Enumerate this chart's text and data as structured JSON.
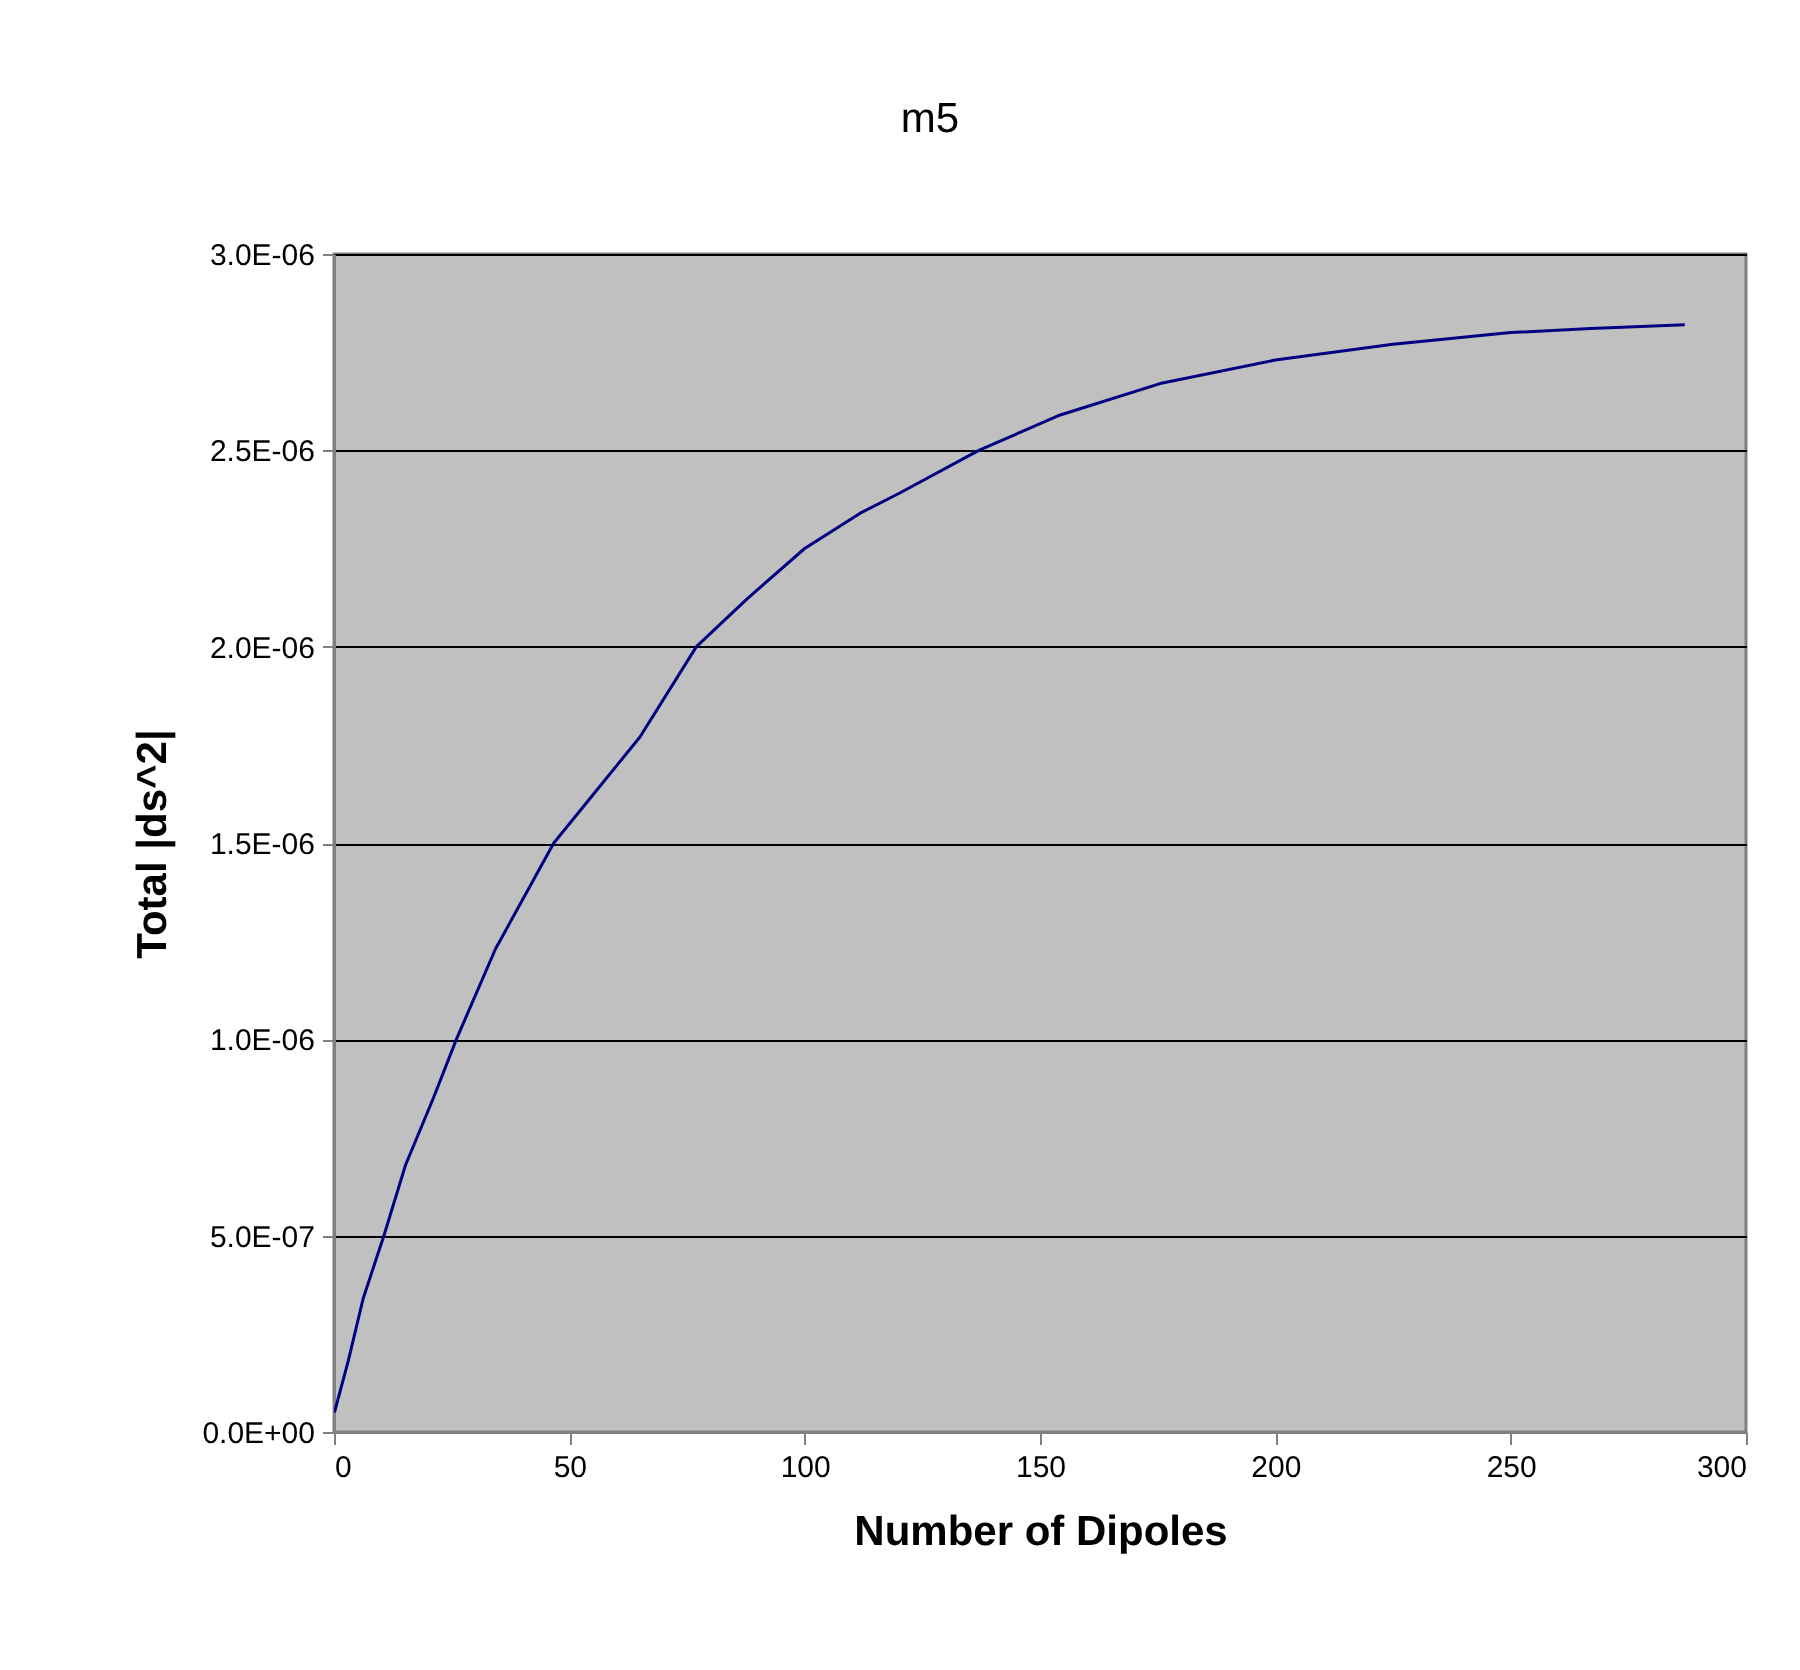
{
  "chart_data": {
    "type": "line",
    "title": "m5",
    "xlabel": "Number of Dipoles",
    "ylabel": "Total |ds^2|",
    "x": [
      0.1,
      3,
      6.2,
      10.6,
      15.2,
      21.1,
      26,
      34.3,
      46.7,
      65,
      77,
      87.6,
      100,
      111.8,
      120,
      137,
      154.3,
      175.5,
      200,
      225,
      250,
      267,
      287
    ],
    "series": [
      {
        "color": "#000080",
        "values": [
          5e-08,
          1.8e-07,
          3.4e-07,
          5e-07,
          6.8e-07,
          8.5e-07,
          1e-06,
          1.23e-06,
          1.5e-06,
          1.77e-06,
          2e-06,
          2.12e-06,
          2.25e-06,
          2.34e-06,
          2.39e-06,
          2.5e-06,
          2.59e-06,
          2.67e-06,
          2.73e-06,
          2.77e-06,
          2.8e-06,
          2.81e-06,
          2.82e-06
        ]
      }
    ],
    "xlim": [
      0,
      300
    ],
    "xticks": [
      0,
      50,
      100,
      150,
      200,
      250,
      300
    ],
    "ylim": [
      0,
      3e-06
    ],
    "yticks": [
      {
        "value": 0,
        "label": "0.0E+00"
      },
      {
        "value": 5e-07,
        "label": "5.0E-07"
      },
      {
        "value": 1e-06,
        "label": "1.0E-06"
      },
      {
        "value": 1.5e-06,
        "label": "1.5E-06"
      },
      {
        "value": 2e-06,
        "label": "2.0E-06"
      },
      {
        "value": 2.5e-06,
        "label": "2.5E-06"
      },
      {
        "value": 3e-06,
        "label": "3.0E-06"
      }
    ],
    "grid": "y"
  }
}
